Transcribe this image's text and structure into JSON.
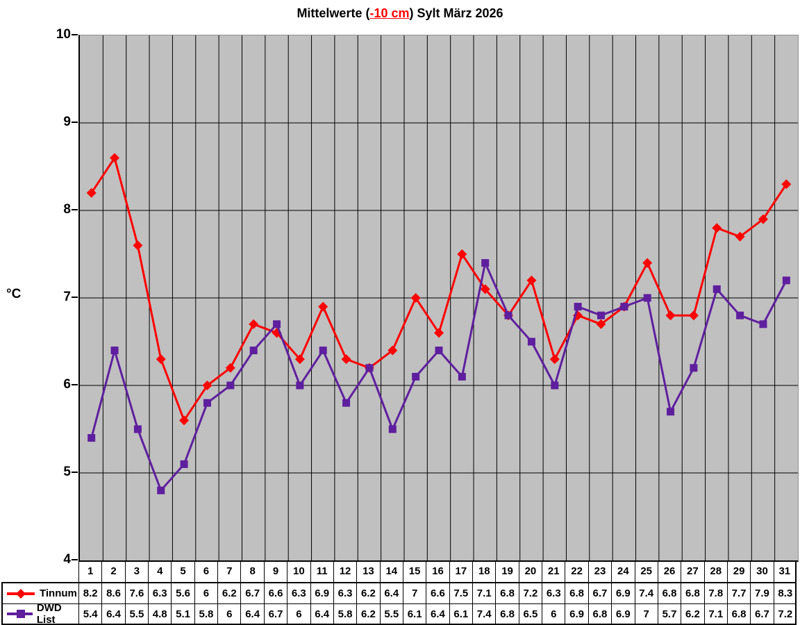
{
  "title": {
    "prefix": "Mittelwerte (",
    "highlight": "-10 cm",
    "suffix": ") Sylt März 2026"
  },
  "chart_data": {
    "type": "line",
    "title": "Mittelwerte (-10 cm) Sylt März 2026",
    "ylabel": "°C",
    "ylim": [
      4,
      10
    ],
    "yticks": [
      10,
      9,
      8,
      7,
      6,
      5,
      4
    ],
    "grid": true,
    "plot_bg": "#c0c0c0",
    "grid_color": "#000000",
    "legend_position": "bottom-left-table",
    "x_categories": [
      "1",
      "2",
      "3",
      "4",
      "5",
      "6",
      "7",
      "8",
      "9",
      "10",
      "11",
      "12",
      "13",
      "14",
      "15",
      "16",
      "17",
      "18",
      "19",
      "20",
      "21",
      "22",
      "23",
      "24",
      "25",
      "26",
      "27",
      "28",
      "29",
      "30",
      "31"
    ],
    "series": [
      {
        "name": "Tinnum",
        "color": "#ff0000",
        "marker": "diamond",
        "values": [
          8.2,
          8.6,
          7.6,
          6.3,
          5.6,
          6,
          6.2,
          6.7,
          6.6,
          6.3,
          6.9,
          6.3,
          6.2,
          6.4,
          7,
          6.6,
          7.5,
          7.1,
          6.8,
          7.2,
          6.3,
          6.8,
          6.7,
          6.9,
          7.4,
          6.8,
          6.8,
          7.8,
          7.7,
          7.9,
          8.3
        ]
      },
      {
        "name": "DWD List",
        "color": "#5e1f9e",
        "marker": "square",
        "values": [
          5.4,
          6.4,
          5.5,
          4.8,
          5.1,
          5.8,
          6,
          6.4,
          6.7,
          6,
          6.4,
          5.8,
          6.2,
          5.5,
          6.1,
          6.4,
          6.1,
          7.4,
          6.8,
          6.5,
          6,
          6.9,
          6.8,
          6.9,
          7,
          5.7,
          6.2,
          7.1,
          6.8,
          6.7,
          7.2
        ]
      }
    ]
  }
}
